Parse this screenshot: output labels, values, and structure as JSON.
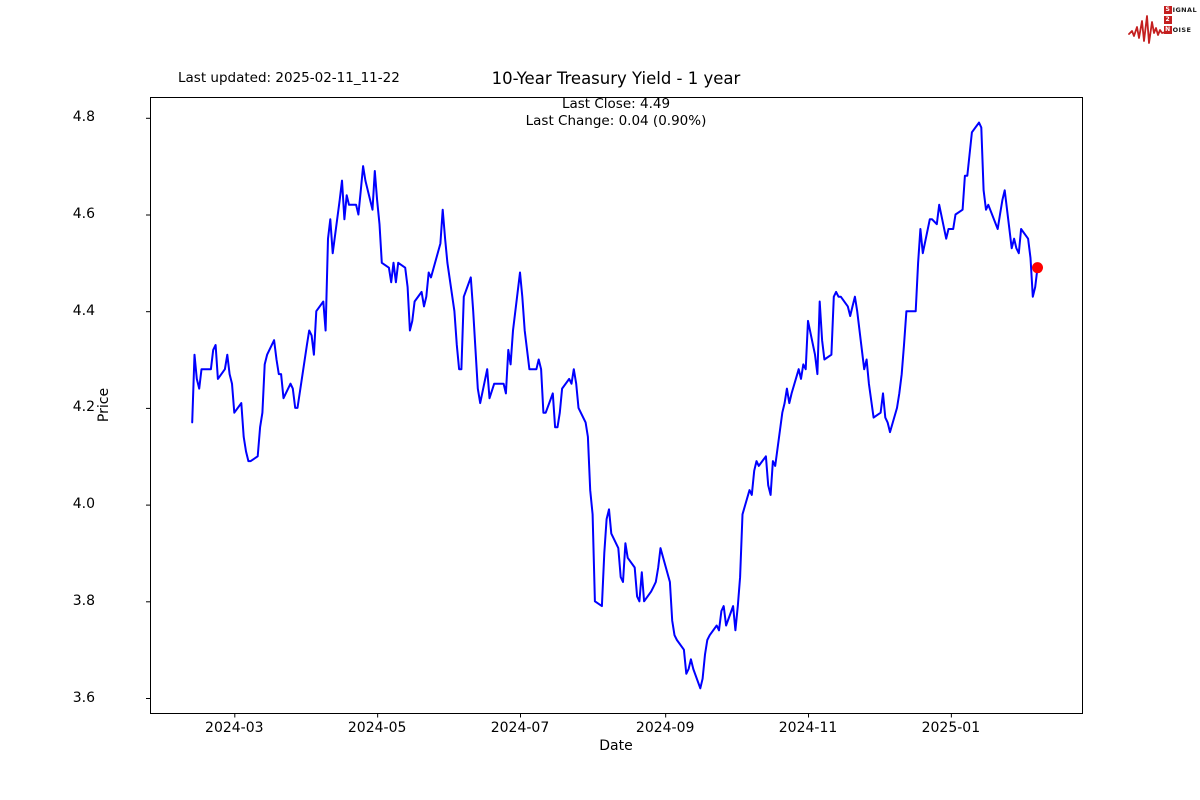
{
  "header": {
    "last_updated": "Last updated: 2025-02-11_11-22"
  },
  "branding": {
    "accent_color": "#c41f1f",
    "line1_boxed": "S",
    "line1_rest": "IGNAL",
    "line2_boxed": "2",
    "line2_rest": "",
    "line3_boxed": "N",
    "line3_rest": "OISE"
  },
  "chart_data": {
    "type": "line",
    "title": "10-Year Treasury Yield - 1 year",
    "annotations": [
      "Last Close: 4.49",
      "Last Change: 0.04 (0.90%)"
    ],
    "last_close": 4.49,
    "last_change": 0.04,
    "last_change_pct": "0.90%",
    "xlabel": "Date",
    "ylabel": "Price",
    "line_color": "#0000ff",
    "marker_color": "#ff0000",
    "axis_color": "#000000",
    "grid": false,
    "legend": "none",
    "ylim": [
      3.569,
      4.843
    ],
    "xlim": [
      "2024-01-25",
      "2025-02-26"
    ],
    "y_ticks": [
      [
        3.6,
        "3.6"
      ],
      [
        3.8,
        "3.8"
      ],
      [
        4.0,
        "4.0"
      ],
      [
        4.2,
        "4.2"
      ],
      [
        4.4,
        "4.4"
      ],
      [
        4.6,
        "4.6"
      ],
      [
        4.8,
        "4.8"
      ]
    ],
    "x_ticks": [
      [
        "2024-03-01",
        "2024-03"
      ],
      [
        "2024-05-01",
        "2024-05"
      ],
      [
        "2024-07-01",
        "2024-07"
      ],
      [
        "2024-09-01",
        "2024-09"
      ],
      [
        "2024-11-01",
        "2024-11"
      ],
      [
        "2025-01-01",
        "2025-01"
      ]
    ],
    "series": [
      {
        "name": "10-Year Treasury Yield",
        "points": [
          [
            "2024-02-12",
            4.17
          ],
          [
            "2024-02-13",
            4.31
          ],
          [
            "2024-02-14",
            4.26
          ],
          [
            "2024-02-15",
            4.24
          ],
          [
            "2024-02-16",
            4.28
          ],
          [
            "2024-02-20",
            4.28
          ],
          [
            "2024-02-21",
            4.32
          ],
          [
            "2024-02-22",
            4.33
          ],
          [
            "2024-02-23",
            4.26
          ],
          [
            "2024-02-26",
            4.28
          ],
          [
            "2024-02-27",
            4.31
          ],
          [
            "2024-02-28",
            4.27
          ],
          [
            "2024-02-29",
            4.25
          ],
          [
            "2024-03-01",
            4.19
          ],
          [
            "2024-03-04",
            4.21
          ],
          [
            "2024-03-05",
            4.14
          ],
          [
            "2024-03-06",
            4.11
          ],
          [
            "2024-03-07",
            4.09
          ],
          [
            "2024-03-08",
            4.09
          ],
          [
            "2024-03-11",
            4.1
          ],
          [
            "2024-03-12",
            4.16
          ],
          [
            "2024-03-13",
            4.19
          ],
          [
            "2024-03-14",
            4.29
          ],
          [
            "2024-03-15",
            4.31
          ],
          [
            "2024-03-18",
            4.34
          ],
          [
            "2024-03-19",
            4.3
          ],
          [
            "2024-03-20",
            4.27
          ],
          [
            "2024-03-21",
            4.27
          ],
          [
            "2024-03-22",
            4.22
          ],
          [
            "2024-03-25",
            4.25
          ],
          [
            "2024-03-26",
            4.24
          ],
          [
            "2024-03-27",
            4.2
          ],
          [
            "2024-03-28",
            4.2
          ],
          [
            "2024-04-01",
            4.33
          ],
          [
            "2024-04-02",
            4.36
          ],
          [
            "2024-04-03",
            4.35
          ],
          [
            "2024-04-04",
            4.31
          ],
          [
            "2024-04-05",
            4.4
          ],
          [
            "2024-04-08",
            4.42
          ],
          [
            "2024-04-09",
            4.36
          ],
          [
            "2024-04-10",
            4.55
          ],
          [
            "2024-04-11",
            4.59
          ],
          [
            "2024-04-12",
            4.52
          ],
          [
            "2024-04-15",
            4.63
          ],
          [
            "2024-04-16",
            4.67
          ],
          [
            "2024-04-17",
            4.59
          ],
          [
            "2024-04-18",
            4.64
          ],
          [
            "2024-04-19",
            4.62
          ],
          [
            "2024-04-22",
            4.62
          ],
          [
            "2024-04-23",
            4.6
          ],
          [
            "2024-04-24",
            4.65
          ],
          [
            "2024-04-25",
            4.7
          ],
          [
            "2024-04-26",
            4.67
          ],
          [
            "2024-04-29",
            4.61
          ],
          [
            "2024-04-30",
            4.69
          ],
          [
            "2024-05-01",
            4.63
          ],
          [
            "2024-05-02",
            4.58
          ],
          [
            "2024-05-03",
            4.5
          ],
          [
            "2024-05-06",
            4.49
          ],
          [
            "2024-05-07",
            4.46
          ],
          [
            "2024-05-08",
            4.5
          ],
          [
            "2024-05-09",
            4.46
          ],
          [
            "2024-05-10",
            4.5
          ],
          [
            "2024-05-13",
            4.49
          ],
          [
            "2024-05-14",
            4.45
          ],
          [
            "2024-05-15",
            4.36
          ],
          [
            "2024-05-16",
            4.38
          ],
          [
            "2024-05-17",
            4.42
          ],
          [
            "2024-05-20",
            4.44
          ],
          [
            "2024-05-21",
            4.41
          ],
          [
            "2024-05-22",
            4.43
          ],
          [
            "2024-05-23",
            4.48
          ],
          [
            "2024-05-24",
            4.47
          ],
          [
            "2024-05-28",
            4.54
          ],
          [
            "2024-05-29",
            4.61
          ],
          [
            "2024-05-30",
            4.55
          ],
          [
            "2024-05-31",
            4.5
          ],
          [
            "2024-06-03",
            4.4
          ],
          [
            "2024-06-04",
            4.33
          ],
          [
            "2024-06-05",
            4.28
          ],
          [
            "2024-06-06",
            4.28
          ],
          [
            "2024-06-07",
            4.43
          ],
          [
            "2024-06-10",
            4.47
          ],
          [
            "2024-06-11",
            4.4
          ],
          [
            "2024-06-12",
            4.32
          ],
          [
            "2024-06-13",
            4.24
          ],
          [
            "2024-06-14",
            4.21
          ],
          [
            "2024-06-17",
            4.28
          ],
          [
            "2024-06-18",
            4.22
          ],
          [
            "2024-06-20",
            4.25
          ],
          [
            "2024-06-21",
            4.25
          ],
          [
            "2024-06-24",
            4.25
          ],
          [
            "2024-06-25",
            4.23
          ],
          [
            "2024-06-26",
            4.32
          ],
          [
            "2024-06-27",
            4.29
          ],
          [
            "2024-06-28",
            4.36
          ],
          [
            "2024-07-01",
            4.48
          ],
          [
            "2024-07-02",
            4.43
          ],
          [
            "2024-07-03",
            4.36
          ],
          [
            "2024-07-05",
            4.28
          ],
          [
            "2024-07-08",
            4.28
          ],
          [
            "2024-07-09",
            4.3
          ],
          [
            "2024-07-10",
            4.28
          ],
          [
            "2024-07-11",
            4.19
          ],
          [
            "2024-07-12",
            4.19
          ],
          [
            "2024-07-15",
            4.23
          ],
          [
            "2024-07-16",
            4.16
          ],
          [
            "2024-07-17",
            4.16
          ],
          [
            "2024-07-18",
            4.19
          ],
          [
            "2024-07-19",
            4.24
          ],
          [
            "2024-07-22",
            4.26
          ],
          [
            "2024-07-23",
            4.25
          ],
          [
            "2024-07-24",
            4.28
          ],
          [
            "2024-07-25",
            4.25
          ],
          [
            "2024-07-26",
            4.2
          ],
          [
            "2024-07-29",
            4.17
          ],
          [
            "2024-07-30",
            4.14
          ],
          [
            "2024-07-31",
            4.03
          ],
          [
            "2024-08-01",
            3.98
          ],
          [
            "2024-08-02",
            3.8
          ],
          [
            "2024-08-05",
            3.79
          ],
          [
            "2024-08-06",
            3.9
          ],
          [
            "2024-08-07",
            3.97
          ],
          [
            "2024-08-08",
            3.99
          ],
          [
            "2024-08-09",
            3.94
          ],
          [
            "2024-08-12",
            3.91
          ],
          [
            "2024-08-13",
            3.85
          ],
          [
            "2024-08-14",
            3.84
          ],
          [
            "2024-08-15",
            3.92
          ],
          [
            "2024-08-16",
            3.89
          ],
          [
            "2024-08-19",
            3.87
          ],
          [
            "2024-08-20",
            3.81
          ],
          [
            "2024-08-21",
            3.8
          ],
          [
            "2024-08-22",
            3.86
          ],
          [
            "2024-08-23",
            3.8
          ],
          [
            "2024-08-26",
            3.82
          ],
          [
            "2024-08-27",
            3.83
          ],
          [
            "2024-08-28",
            3.84
          ],
          [
            "2024-08-29",
            3.87
          ],
          [
            "2024-08-30",
            3.91
          ],
          [
            "2024-09-03",
            3.84
          ],
          [
            "2024-09-04",
            3.76
          ],
          [
            "2024-09-05",
            3.73
          ],
          [
            "2024-09-06",
            3.72
          ],
          [
            "2024-09-09",
            3.7
          ],
          [
            "2024-09-10",
            3.65
          ],
          [
            "2024-09-11",
            3.66
          ],
          [
            "2024-09-12",
            3.68
          ],
          [
            "2024-09-13",
            3.66
          ],
          [
            "2024-09-16",
            3.62
          ],
          [
            "2024-09-17",
            3.64
          ],
          [
            "2024-09-18",
            3.69
          ],
          [
            "2024-09-19",
            3.72
          ],
          [
            "2024-09-20",
            3.73
          ],
          [
            "2024-09-23",
            3.75
          ],
          [
            "2024-09-24",
            3.74
          ],
          [
            "2024-09-25",
            3.78
          ],
          [
            "2024-09-26",
            3.79
          ],
          [
            "2024-09-27",
            3.75
          ],
          [
            "2024-09-30",
            3.79
          ],
          [
            "2024-10-01",
            3.74
          ],
          [
            "2024-10-02",
            3.79
          ],
          [
            "2024-10-03",
            3.85
          ],
          [
            "2024-10-04",
            3.98
          ],
          [
            "2024-10-07",
            4.03
          ],
          [
            "2024-10-08",
            4.02
          ],
          [
            "2024-10-09",
            4.07
          ],
          [
            "2024-10-10",
            4.09
          ],
          [
            "2024-10-11",
            4.08
          ],
          [
            "2024-10-14",
            4.1
          ],
          [
            "2024-10-15",
            4.04
          ],
          [
            "2024-10-16",
            4.02
          ],
          [
            "2024-10-17",
            4.09
          ],
          [
            "2024-10-18",
            4.08
          ],
          [
            "2024-10-21",
            4.19
          ],
          [
            "2024-10-22",
            4.21
          ],
          [
            "2024-10-23",
            4.24
          ],
          [
            "2024-10-24",
            4.21
          ],
          [
            "2024-10-25",
            4.23
          ],
          [
            "2024-10-28",
            4.28
          ],
          [
            "2024-10-29",
            4.26
          ],
          [
            "2024-10-30",
            4.29
          ],
          [
            "2024-10-31",
            4.28
          ],
          [
            "2024-11-01",
            4.38
          ],
          [
            "2024-11-04",
            4.31
          ],
          [
            "2024-11-05",
            4.27
          ],
          [
            "2024-11-06",
            4.42
          ],
          [
            "2024-11-07",
            4.34
          ],
          [
            "2024-11-08",
            4.3
          ],
          [
            "2024-11-11",
            4.31
          ],
          [
            "2024-11-12",
            4.43
          ],
          [
            "2024-11-13",
            4.44
          ],
          [
            "2024-11-14",
            4.43
          ],
          [
            "2024-11-15",
            4.43
          ],
          [
            "2024-11-18",
            4.41
          ],
          [
            "2024-11-19",
            4.39
          ],
          [
            "2024-11-20",
            4.41
          ],
          [
            "2024-11-21",
            4.43
          ],
          [
            "2024-11-22",
            4.4
          ],
          [
            "2024-11-25",
            4.28
          ],
          [
            "2024-11-26",
            4.3
          ],
          [
            "2024-11-27",
            4.25
          ],
          [
            "2024-11-29",
            4.18
          ],
          [
            "2024-12-02",
            4.19
          ],
          [
            "2024-12-03",
            4.23
          ],
          [
            "2024-12-04",
            4.18
          ],
          [
            "2024-12-05",
            4.17
          ],
          [
            "2024-12-06",
            4.15
          ],
          [
            "2024-12-09",
            4.2
          ],
          [
            "2024-12-10",
            4.23
          ],
          [
            "2024-12-11",
            4.27
          ],
          [
            "2024-12-12",
            4.33
          ],
          [
            "2024-12-13",
            4.4
          ],
          [
            "2024-12-16",
            4.4
          ],
          [
            "2024-12-17",
            4.4
          ],
          [
            "2024-12-18",
            4.5
          ],
          [
            "2024-12-19",
            4.57
          ],
          [
            "2024-12-20",
            4.52
          ],
          [
            "2024-12-23",
            4.59
          ],
          [
            "2024-12-24",
            4.59
          ],
          [
            "2024-12-26",
            4.58
          ],
          [
            "2024-12-27",
            4.62
          ],
          [
            "2024-12-30",
            4.55
          ],
          [
            "2024-12-31",
            4.57
          ],
          [
            "2025-01-02",
            4.57
          ],
          [
            "2025-01-03",
            4.6
          ],
          [
            "2025-01-06",
            4.61
          ],
          [
            "2025-01-07",
            4.68
          ],
          [
            "2025-01-08",
            4.68
          ],
          [
            "2025-01-10",
            4.77
          ],
          [
            "2025-01-13",
            4.79
          ],
          [
            "2025-01-14",
            4.78
          ],
          [
            "2025-01-15",
            4.65
          ],
          [
            "2025-01-16",
            4.61
          ],
          [
            "2025-01-17",
            4.62
          ],
          [
            "2025-01-21",
            4.57
          ],
          [
            "2025-01-22",
            4.6
          ],
          [
            "2025-01-23",
            4.63
          ],
          [
            "2025-01-24",
            4.65
          ],
          [
            "2025-01-27",
            4.53
          ],
          [
            "2025-01-28",
            4.55
          ],
          [
            "2025-01-29",
            4.53
          ],
          [
            "2025-01-30",
            4.52
          ],
          [
            "2025-01-31",
            4.57
          ],
          [
            "2025-02-03",
            4.55
          ],
          [
            "2025-02-04",
            4.51
          ],
          [
            "2025-02-05",
            4.43
          ],
          [
            "2025-02-06",
            4.45
          ],
          [
            "2025-02-07",
            4.49
          ]
        ]
      }
    ]
  }
}
